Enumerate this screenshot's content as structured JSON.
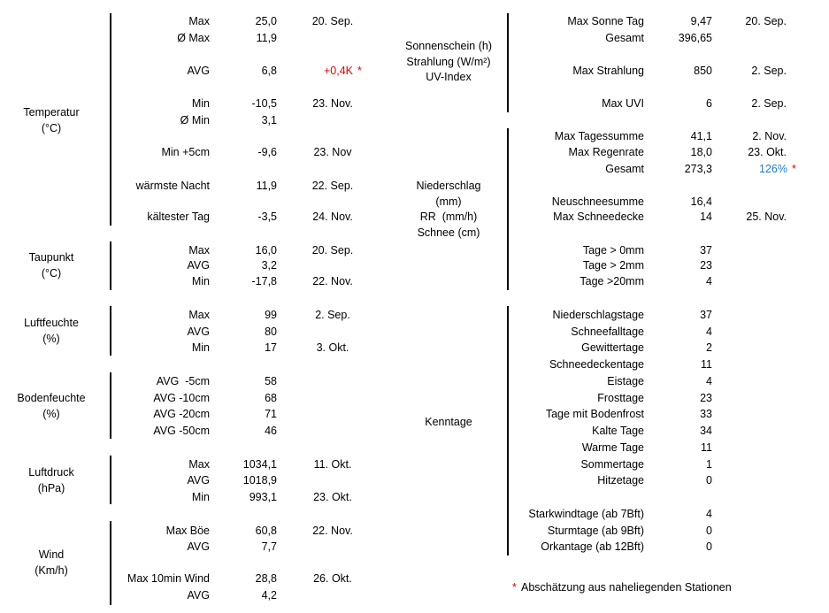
{
  "left_groups": [
    {
      "label_lines": [
        "Temperatur",
        "(°C)"
      ],
      "rows": [
        {
          "label": "Max",
          "value": "25,0",
          "date": "20. Sep."
        },
        {
          "label": "Ø Max",
          "value": "11,9"
        },
        {
          "label": "AVG",
          "value": "6,8",
          "note": "+0,4K",
          "mark": "*"
        },
        {
          "label": "Min",
          "value": "-10,5",
          "date": "23. Nov."
        },
        {
          "label": "Ø Min",
          "value": "3,1"
        },
        {
          "label": "Min +5cm",
          "value": "-9,6",
          "date": "23. Nov"
        },
        {
          "label": "wärmste Nacht",
          "value": "11,9",
          "date": "22. Sep."
        },
        {
          "label": "kältester Tag",
          "value": "-3,5",
          "date": "24. Nov."
        }
      ]
    },
    {
      "label_lines": [
        "Taupunkt",
        "(°C)"
      ],
      "rows": [
        {
          "label": "Max",
          "value": "16,0",
          "date": "20. Sep."
        },
        {
          "label": "AVG",
          "value": "3,2"
        },
        {
          "label": "Min",
          "value": "-17,8",
          "date": "22. Nov."
        }
      ]
    },
    {
      "label_lines": [
        "Luftfeuchte",
        "(%)"
      ],
      "rows": [
        {
          "label": "Max",
          "value": "99",
          "date": "2. Sep."
        },
        {
          "label": "AVG",
          "value": "80"
        },
        {
          "label": "Min",
          "value": "17",
          "date": "3. Okt."
        }
      ]
    },
    {
      "label_lines": [
        "Bodenfeuchte",
        "(%)"
      ],
      "rows": [
        {
          "label": "AVG  -5cm",
          "value": "58"
        },
        {
          "label": "AVG -10cm",
          "value": "68"
        },
        {
          "label": "AVG -20cm",
          "value": "71"
        },
        {
          "label": "AVG -50cm",
          "value": "46"
        }
      ]
    },
    {
      "label_lines": [
        "Luftdruck",
        "(hPa)"
      ],
      "rows": [
        {
          "label": "Max",
          "value": "1034,1",
          "date": "11. Okt."
        },
        {
          "label": "AVG",
          "value": "1018,9"
        },
        {
          "label": "Min",
          "value": "993,1",
          "date": "23. Okt."
        }
      ]
    },
    {
      "label_lines": [
        "Wind",
        "(Km/h)"
      ],
      "rows": [
        {
          "label": "Max Böe",
          "value": "60,8",
          "date": "22. Nov."
        },
        {
          "label": "AVG",
          "value": "7,7"
        },
        {
          "label": "Max 10min Wind",
          "value": "28,8",
          "date": "26. Okt."
        },
        {
          "label": "AVG",
          "value": "4,2"
        }
      ]
    }
  ],
  "right_groups": [
    {
      "label_lines": [
        "Sonnenschein (h)",
        "Strahlung (W/m²)",
        "UV-Index"
      ],
      "rows": [
        {
          "label": "Max Sonne Tag",
          "value": "9,47",
          "date": "20. Sep."
        },
        {
          "label": "Gesamt",
          "value": "396,65"
        },
        {
          "label": "Max Strahlung",
          "value": "850",
          "date": "2. Sep."
        },
        {
          "label": "Max UVI",
          "value": "6",
          "date": "2. Sep."
        }
      ]
    },
    {
      "label_lines": [
        "Niederschlag",
        "(mm)",
        "RR  (mm/h)",
        "Schnee (cm)"
      ],
      "rows": [
        {
          "label": "Max Tagessumme",
          "value": "41,1",
          "date": "2. Nov."
        },
        {
          "label": "Max Regenrate",
          "value": "18,0",
          "date": "23. Okt."
        },
        {
          "label": "Gesamt",
          "value": "273,3",
          "note": "126%",
          "mark": "*"
        },
        {
          "label": "Neuschneesumme",
          "value": "16,4"
        },
        {
          "label": "Max Schneedecke",
          "value": "14",
          "date": "25. Nov."
        },
        {
          "label": "Tage > 0mm",
          "value": "37"
        },
        {
          "label": "Tage > 2mm",
          "value": "23"
        },
        {
          "label": "Tage >20mm",
          "value": "4"
        }
      ]
    },
    {
      "label_lines": [
        "Kenntage"
      ],
      "rows": [
        {
          "label": "Niederschlagstage",
          "value": "37"
        },
        {
          "label": "Schneefalltage",
          "value": "4"
        },
        {
          "label": "Gewittertage",
          "value": "2"
        },
        {
          "label": "Schneedeckentage",
          "value": "11"
        },
        {
          "label": "Eistage",
          "value": "4"
        },
        {
          "label": "Frosttage",
          "value": "23"
        },
        {
          "label": "Tage mit Bodenfrost",
          "value": "33"
        },
        {
          "label": "Kalte Tage",
          "value": "34"
        },
        {
          "label": "Warme Tage",
          "value": "11"
        },
        {
          "label": "Sommertage",
          "value": "1"
        },
        {
          "label": "Hitzetage",
          "value": "0"
        },
        {
          "label": "Starkwindtage (ab 7Bft)",
          "value": "4"
        },
        {
          "label": "Sturmtage (ab 9Bft)",
          "value": "0"
        },
        {
          "label": "Orkantage (ab 12Bft)",
          "value": "0"
        }
      ]
    }
  ],
  "footnote": {
    "mark": "*",
    "text": "Abschätzung aus naheliegenden Stationen"
  }
}
